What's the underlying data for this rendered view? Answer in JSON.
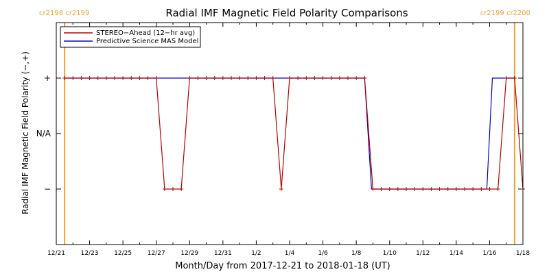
{
  "chart_data": {
    "type": "line",
    "title": "Radial IMF Magnetic Field Polarity Comparisons",
    "xlabel": "Month/Day from 2017-12-21 to 2018-01-18 (UT)",
    "ylabel": "Radial IMF Magnetic Field Polarity (−,+)",
    "xlim": [
      "2017-12-21",
      "2018-01-18"
    ],
    "x_tick_labels": [
      "12/21",
      "12/23",
      "12/25",
      "12/27",
      "12/29",
      "12/31",
      "1/2",
      "1/4",
      "1/6",
      "1/8",
      "1/10",
      "1/12",
      "1/14",
      "1/16",
      "1/18"
    ],
    "y_levels": [
      -1,
      0,
      1
    ],
    "y_tick_labels": [
      "−",
      "N/A",
      "+"
    ],
    "ylim": [
      -2,
      2
    ],
    "grid": false,
    "legend_position": "top-left",
    "carrington_markers": [
      {
        "date": "2017-12-21T12:00",
        "label": "cr2198 cr2199",
        "label_align": "left"
      },
      {
        "date": "2018-01-17T12:00",
        "label": "cr2199 cr2200",
        "label_align": "right"
      }
    ],
    "colors": {
      "stereo": "#b40000",
      "mas": "#0000cc",
      "carrington": "#f0a030",
      "axis": "#000000"
    },
    "series": [
      {
        "name": "STEREO−Ahead (12−hr avg)",
        "color": "#b40000",
        "markers": true,
        "points": [
          [
            "2017-12-21T12:00",
            1
          ],
          [
            "2017-12-22T00:00",
            1
          ],
          [
            "2017-12-22T12:00",
            1
          ],
          [
            "2017-12-23T00:00",
            1
          ],
          [
            "2017-12-23T12:00",
            1
          ],
          [
            "2017-12-24T00:00",
            1
          ],
          [
            "2017-12-24T12:00",
            1
          ],
          [
            "2017-12-25T00:00",
            1
          ],
          [
            "2017-12-25T12:00",
            1
          ],
          [
            "2017-12-26T00:00",
            1
          ],
          [
            "2017-12-26T12:00",
            1
          ],
          [
            "2017-12-27T00:00",
            1
          ],
          [
            "2017-12-27T12:00",
            -1
          ],
          [
            "2017-12-28T00:00",
            -1
          ],
          [
            "2017-12-28T12:00",
            -1
          ],
          [
            "2017-12-29T00:00",
            1
          ],
          [
            "2017-12-29T12:00",
            1
          ],
          [
            "2017-12-30T00:00",
            1
          ],
          [
            "2017-12-30T12:00",
            1
          ],
          [
            "2017-12-31T00:00",
            1
          ],
          [
            "2017-12-31T12:00",
            1
          ],
          [
            "2018-01-01T00:00",
            1
          ],
          [
            "2018-01-01T12:00",
            1
          ],
          [
            "2018-01-02T00:00",
            1
          ],
          [
            "2018-01-02T12:00",
            1
          ],
          [
            "2018-01-03T00:00",
            1
          ],
          [
            "2018-01-03T12:00",
            -1
          ],
          [
            "2018-01-04T00:00",
            1
          ],
          [
            "2018-01-04T12:00",
            1
          ],
          [
            "2018-01-05T00:00",
            1
          ],
          [
            "2018-01-05T12:00",
            1
          ],
          [
            "2018-01-06T00:00",
            1
          ],
          [
            "2018-01-06T12:00",
            1
          ],
          [
            "2018-01-07T00:00",
            1
          ],
          [
            "2018-01-07T12:00",
            1
          ],
          [
            "2018-01-08T00:00",
            1
          ],
          [
            "2018-01-08T12:00",
            1
          ],
          [
            "2018-01-09T00:00",
            -1
          ],
          [
            "2018-01-09T12:00",
            -1
          ],
          [
            "2018-01-10T00:00",
            -1
          ],
          [
            "2018-01-10T12:00",
            -1
          ],
          [
            "2018-01-11T00:00",
            -1
          ],
          [
            "2018-01-11T12:00",
            -1
          ],
          [
            "2018-01-12T00:00",
            -1
          ],
          [
            "2018-01-12T12:00",
            -1
          ],
          [
            "2018-01-13T00:00",
            -1
          ],
          [
            "2018-01-13T12:00",
            -1
          ],
          [
            "2018-01-14T00:00",
            -1
          ],
          [
            "2018-01-14T12:00",
            -1
          ],
          [
            "2018-01-15T00:00",
            -1
          ],
          [
            "2018-01-15T12:00",
            -1
          ],
          [
            "2018-01-16T00:00",
            -1
          ],
          [
            "2018-01-16T12:00",
            -1
          ],
          [
            "2018-01-17T00:00",
            1
          ],
          [
            "2018-01-17T12:00",
            1
          ],
          [
            "2018-01-18T00:00",
            -1
          ]
        ]
      },
      {
        "name": "Predictive Science MAS Model",
        "color": "#0000cc",
        "markers": false,
        "points": [
          [
            "2017-12-21T12:00",
            1
          ],
          [
            "2018-01-08T12:00",
            1
          ],
          [
            "2018-01-08T22:00",
            -1
          ],
          [
            "2018-01-15T20:00",
            -1
          ],
          [
            "2018-01-16T04:00",
            1
          ],
          [
            "2018-01-17T12:00",
            1
          ]
        ]
      }
    ]
  }
}
